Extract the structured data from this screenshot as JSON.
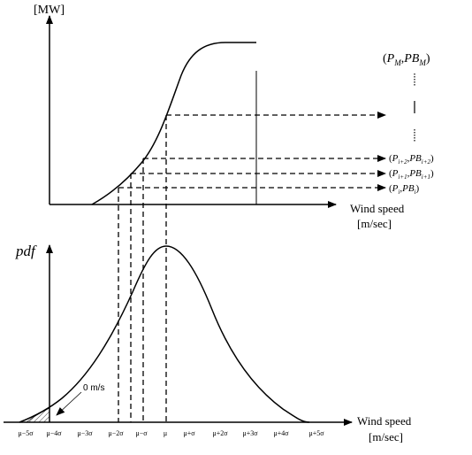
{
  "top_chart": {
    "y_unit": "[MW]",
    "x_label_line1": "Wind speed",
    "x_label_line2": "[m/sec]",
    "point_labels": [
      {
        "p": "P",
        "p_sub": "M",
        "pb": "PB",
        "pb_sub": "M"
      },
      {
        "p": "P",
        "p_sub": "i+2",
        "pb": "PB",
        "pb_sub": "i+2"
      },
      {
        "p": "P",
        "p_sub": "i+1",
        "pb": "PB",
        "pb_sub": "i+1"
      },
      {
        "p": "P",
        "p_sub": "i",
        "pb": "PB",
        "pb_sub": "i"
      }
    ]
  },
  "bottom_chart": {
    "y_label": "pdf",
    "x_label_line1": "Wind speed",
    "x_label_line2": "[m/sec]",
    "annotation": "0 m/s",
    "tick_labels": [
      "μ−5σ",
      "μ−4σ",
      "μ−3σ",
      "μ−2σ",
      "μ−σ",
      "μ",
      "μ+σ",
      "μ+2σ",
      "μ+3σ",
      "μ+4σ",
      "μ+5σ"
    ]
  }
}
